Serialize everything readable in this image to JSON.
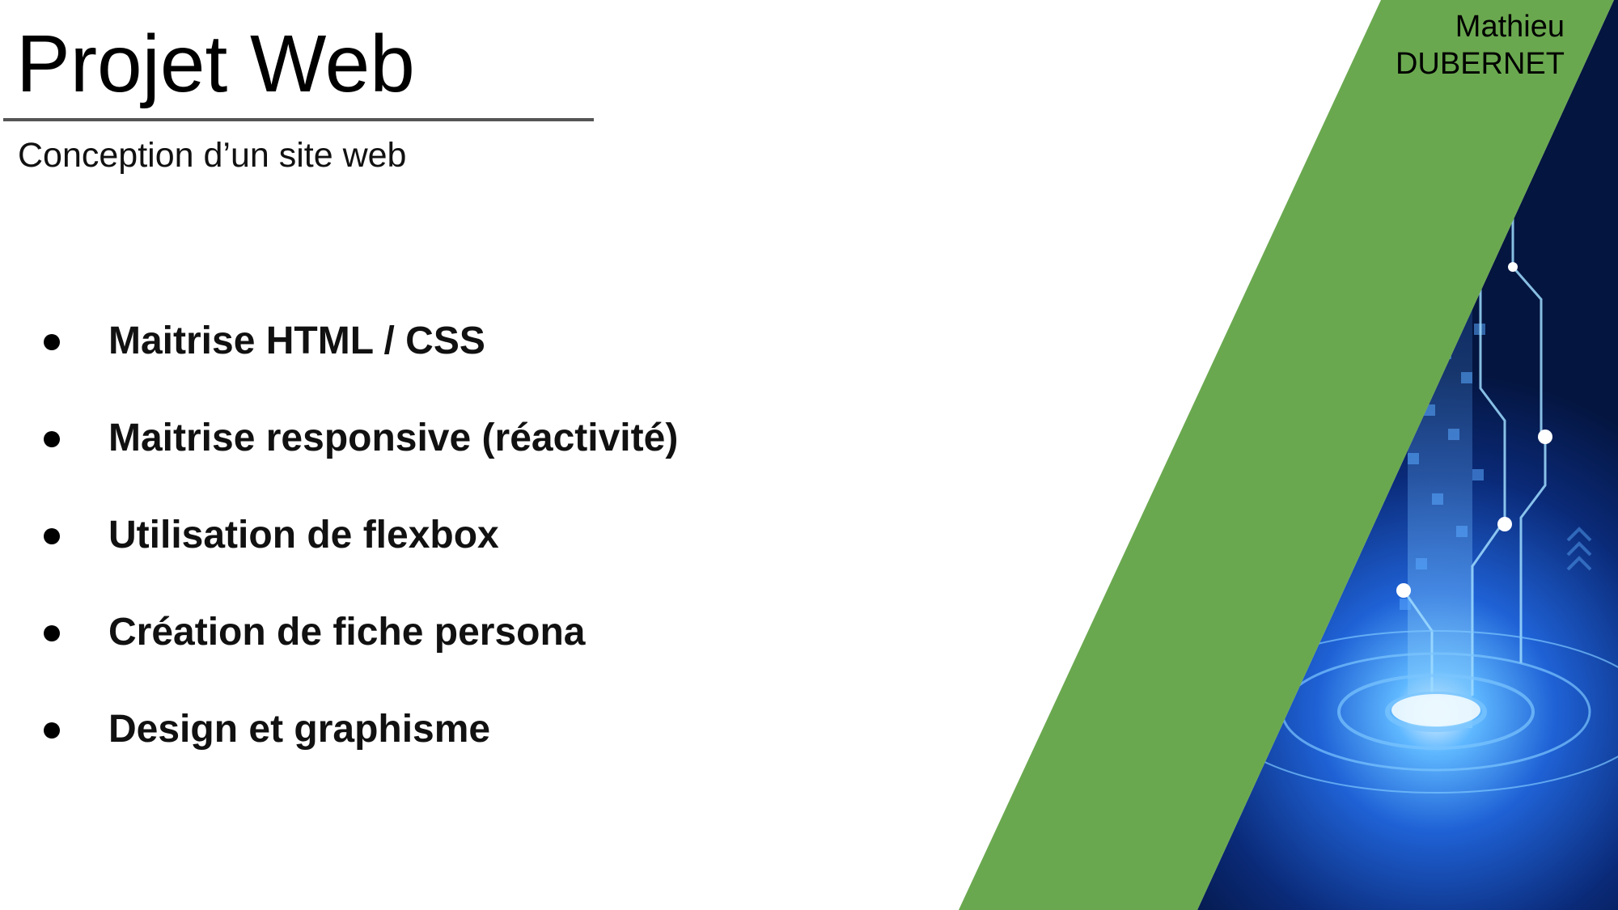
{
  "slide": {
    "title": "Projet Web",
    "subtitle": "Conception d’un site web",
    "author": {
      "first_name": "Mathieu",
      "last_name": "DUBERNET"
    },
    "bullets": [
      "Maitrise HTML / CSS",
      "Maitrise responsive (réactivité)",
      "Utilisation de flexbox",
      "Création de fiche persona",
      "Design et graphisme"
    ]
  },
  "colors": {
    "accent_green": "#6aa84f",
    "tech_blue_dark": "#041a4a",
    "tech_blue_glow": "#2f8cff",
    "text": "#000000"
  },
  "decor": {
    "band_icon": "green-diagonal-band",
    "image_icon": "digital-circuit-tech-image"
  }
}
